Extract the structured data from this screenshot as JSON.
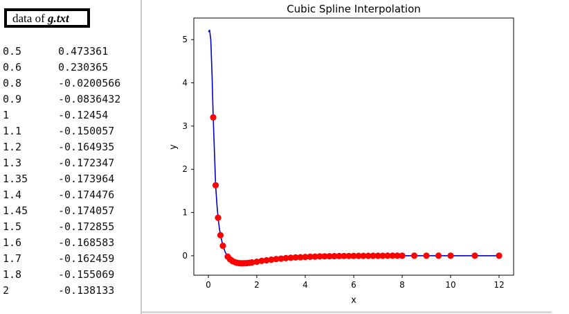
{
  "left_panel": {
    "heading_prefix": "data of ",
    "heading_file": "g.txt",
    "rows": [
      {
        "x": "0.5",
        "y": "0.473361"
      },
      {
        "x": "0.6",
        "y": "0.230365"
      },
      {
        "x": "0.8",
        "y": "-0.0200566"
      },
      {
        "x": "0.9",
        "y": "-0.0836432"
      },
      {
        "x": "1",
        "y": "-0.12454"
      },
      {
        "x": "1.1",
        "y": "-0.150057"
      },
      {
        "x": "1.2",
        "y": "-0.164935"
      },
      {
        "x": "1.3",
        "y": "-0.172347"
      },
      {
        "x": "1.35",
        "y": "-0.173964"
      },
      {
        "x": "1.4",
        "y": "-0.174476"
      },
      {
        "x": "1.45",
        "y": "-0.174057"
      },
      {
        "x": "1.5",
        "y": "-0.172855"
      },
      {
        "x": "1.6",
        "y": "-0.168583"
      },
      {
        "x": "1.7",
        "y": "-0.162459"
      },
      {
        "x": "1.8",
        "y": "-0.155069"
      },
      {
        "x": "2",
        "y": "-0.138133"
      }
    ]
  },
  "chart_data": {
    "type": "line",
    "title": "Cubic Spline Interpolation",
    "xlabel": "x",
    "ylabel": "y",
    "xlim": [
      -0.6,
      12.6
    ],
    "ylim": [
      -0.45,
      5.5
    ],
    "xticks": [
      0,
      2,
      4,
      6,
      8,
      10,
      12
    ],
    "yticks": [
      0,
      1,
      2,
      3,
      4,
      5
    ],
    "grid": false,
    "series": [
      {
        "style": "spline-line",
        "color": "#0000cc",
        "x": [
          0.0,
          0.05,
          0.1,
          0.15,
          0.2,
          0.25,
          0.3,
          0.35,
          0.4,
          0.45,
          0.5,
          0.55,
          0.6,
          0.7,
          0.8,
          0.9,
          1.0,
          1.1,
          1.2,
          1.3,
          1.4,
          1.5,
          1.7,
          2.0,
          2.5,
          3.0,
          4.0,
          5.0,
          6.0,
          8.0,
          10.0,
          12.0
        ],
        "y": [
          5.18,
          5.22,
          5.0,
          4.2,
          3.2,
          2.4,
          1.63,
          1.2,
          0.88,
          0.65,
          0.473,
          0.35,
          0.23,
          0.08,
          -0.02,
          -0.084,
          -0.125,
          -0.15,
          -0.165,
          -0.172,
          -0.174,
          -0.173,
          -0.162,
          -0.138,
          -0.1,
          -0.07,
          -0.03,
          -0.01,
          0.0,
          0.0,
          0.0,
          0.0
        ]
      },
      {
        "style": "markers",
        "color": "#ff0000",
        "x": [
          0.2,
          0.3,
          0.4,
          0.5,
          0.6,
          0.8,
          0.9,
          1.0,
          1.1,
          1.2,
          1.3,
          1.35,
          1.4,
          1.45,
          1.5,
          1.6,
          1.7,
          1.8,
          2.0,
          2.2,
          2.4,
          2.6,
          2.8,
          3.0,
          3.2,
          3.4,
          3.6,
          3.8,
          4.0,
          4.2,
          4.4,
          4.6,
          4.8,
          5.0,
          5.2,
          5.4,
          5.6,
          5.8,
          6.0,
          6.2,
          6.4,
          6.6,
          6.8,
          7.0,
          7.2,
          7.4,
          7.6,
          7.8,
          8.0,
          8.5,
          9.0,
          9.5,
          10.0,
          11.0,
          12.0
        ],
        "y": [
          3.2,
          1.63,
          0.88,
          0.473361,
          0.230365,
          -0.0200566,
          -0.0836432,
          -0.12454,
          -0.150057,
          -0.164935,
          -0.172347,
          -0.173964,
          -0.174476,
          -0.174057,
          -0.172855,
          -0.168583,
          -0.162459,
          -0.155069,
          -0.138133,
          -0.12,
          -0.105,
          -0.09,
          -0.077,
          -0.066,
          -0.056,
          -0.047,
          -0.04,
          -0.034,
          -0.028,
          -0.024,
          -0.02,
          -0.016,
          -0.013,
          -0.011,
          -0.009,
          -0.007,
          -0.006,
          -0.005,
          -0.004,
          -0.003,
          -0.002,
          -0.002,
          -0.001,
          -0.001,
          -0.001,
          0.0,
          0.0,
          0.0,
          0.0,
          0.0,
          0.0,
          0.0,
          0.0,
          0.0,
          0.0
        ]
      }
    ]
  }
}
